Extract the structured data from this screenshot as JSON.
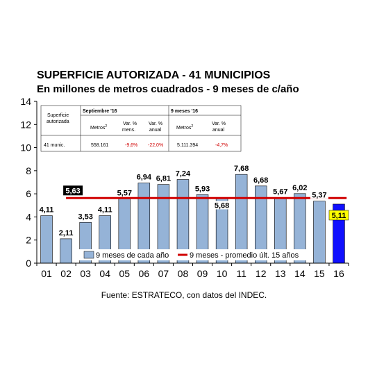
{
  "chart_data": {
    "type": "bar",
    "title": "SUPERFICIE AUTORIZADA - 41 MUNICIPIOS",
    "subtitle": "En millones de metros cuadrados - 9 meses de c/año",
    "source": "Fuente: ESTRATECO, con datos del INDEC.",
    "categories": [
      "01",
      "02",
      "03",
      "04",
      "05",
      "06",
      "07",
      "08",
      "09",
      "10",
      "11",
      "12",
      "13",
      "14",
      "15",
      "16"
    ],
    "series": [
      {
        "name": "9 meses de cada año",
        "values": [
          4.11,
          2.11,
          3.53,
          4.11,
          5.57,
          6.94,
          6.81,
          7.24,
          5.93,
          5.68,
          7.68,
          6.68,
          5.67,
          6.02,
          5.37,
          5.11
        ],
        "labels": [
          "4,11",
          "2,11",
          "3,53",
          "4,11",
          "5,57",
          "6,94",
          "6,81",
          "7,24",
          "5,93",
          "5,68",
          "7,68",
          "6,68",
          "5,67",
          "6,02",
          "5,37",
          "5,11"
        ],
        "color": "#95b3d7",
        "highlight_color": "#1010ff"
      },
      {
        "name": "9 meses - promedio últ. 15 años",
        "type": "line",
        "value": 5.63,
        "label": "5,63",
        "color": "#d00000"
      }
    ],
    "ylim": [
      0,
      14
    ],
    "yticks": [
      0,
      2,
      4,
      6,
      8,
      10,
      12,
      14
    ],
    "grid": false,
    "legend": "bottom"
  },
  "table": {
    "row_header": "Superficie autorizada",
    "group1": "Septiembre '16",
    "group2": "9 meses '16",
    "col_metros": "Metros",
    "col_metros_sup": "2",
    "col_var_mens_1": "Var. %",
    "col_var_mens_2": "mens.",
    "col_var_anual_1": "Var. %",
    "col_var_anual_2": "anual",
    "row_label": "41 munic.",
    "sep_metros": "558.161",
    "sep_var_mens": "-9,6%",
    "sep_var_anual": "-22,0%",
    "nm_metros": "5.111.394",
    "nm_var_anual": "-4,7%"
  },
  "colors": {
    "bar": "#95b3d7",
    "bar_highlight": "#1010ff",
    "avg_line": "#d00000",
    "avg_label_bg": "#000000",
    "highlight_label_bg": "#ffff00"
  }
}
